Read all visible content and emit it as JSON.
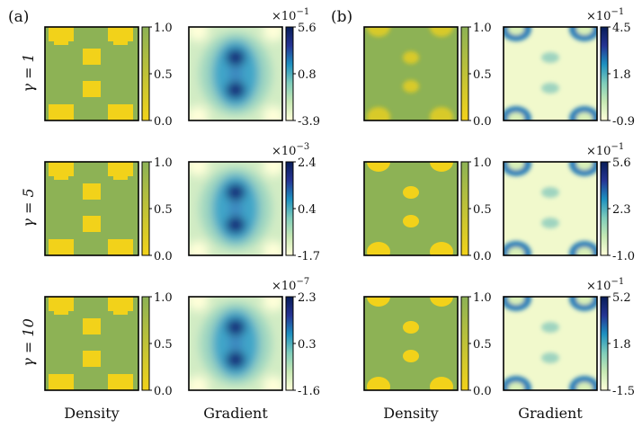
{
  "figure": {
    "panel_labels": [
      "(a)",
      "(b)"
    ],
    "row_labels": [
      "γ = 1",
      "γ = 5",
      "γ = 10"
    ],
    "column_labels": [
      "Density",
      "Gradient",
      "Density",
      "Gradient"
    ]
  },
  "chart_data": {
    "type": "heatmap",
    "title": "",
    "panels": [
      {
        "label": "(a)",
        "rows": [
          {
            "gamma_label": "γ = 1",
            "density": {
              "colorbar_ticks": [
                "1.0",
                "0.5",
                "0.0"
              ],
              "range": [
                0.0,
                1.0
              ],
              "circular_blobs": false,
              "soft": false
            },
            "gradient": {
              "scale": "×10",
              "exponent": "−1",
              "colorbar_ticks": [
                "5.6",
                "0.8",
                "-3.9"
              ],
              "range": [
                -3.9,
                5.6
              ]
            }
          },
          {
            "gamma_label": "γ = 5",
            "density": {
              "colorbar_ticks": [
                "1.0",
                "0.5",
                "0.0"
              ],
              "range": [
                0.0,
                1.0
              ],
              "circular_blobs": false,
              "soft": false
            },
            "gradient": {
              "scale": "×10",
              "exponent": "−3",
              "colorbar_ticks": [
                "2.4",
                "0.4",
                "-1.7"
              ],
              "range": [
                -1.7,
                2.4
              ]
            }
          },
          {
            "gamma_label": "γ = 10",
            "density": {
              "colorbar_ticks": [
                "1.0",
                "0.5",
                "0.0"
              ],
              "range": [
                0.0,
                1.0
              ],
              "circular_blobs": false,
              "soft": false
            },
            "gradient": {
              "scale": "×10",
              "exponent": "−7",
              "colorbar_ticks": [
                "2.3",
                "0.3",
                "-1.6"
              ],
              "range": [
                -1.6,
                2.3
              ]
            }
          }
        ]
      },
      {
        "label": "(b)",
        "rows": [
          {
            "gamma_label": "γ = 1",
            "density": {
              "colorbar_ticks": [
                "1.0",
                "0.5",
                "0.0"
              ],
              "range": [
                0.0,
                1.0
              ],
              "circular_blobs": true,
              "soft": true
            },
            "gradient": {
              "scale": "×10",
              "exponent": "−1",
              "colorbar_ticks": [
                "4.5",
                "1.8",
                "-0.9"
              ],
              "range": [
                -0.9,
                4.5
              ]
            }
          },
          {
            "gamma_label": "γ = 5",
            "density": {
              "colorbar_ticks": [
                "1.0",
                "0.5",
                "0.0"
              ],
              "range": [
                0.0,
                1.0
              ],
              "circular_blobs": true,
              "soft": false
            },
            "gradient": {
              "scale": "×10",
              "exponent": "−1",
              "colorbar_ticks": [
                "5.6",
                "2.3",
                "-1.0"
              ],
              "range": [
                -1.0,
                5.6
              ]
            }
          },
          {
            "gamma_label": "γ = 10",
            "density": {
              "colorbar_ticks": [
                "1.0",
                "0.5",
                "0.0"
              ],
              "range": [
                0.0,
                1.0
              ],
              "circular_blobs": true,
              "soft": false
            },
            "gradient": {
              "scale": "×10",
              "exponent": "−1",
              "colorbar_ticks": [
                "5.2",
                "1.8",
                "-1.5"
              ],
              "range": [
                -1.5,
                5.2
              ]
            }
          }
        ]
      }
    ]
  }
}
